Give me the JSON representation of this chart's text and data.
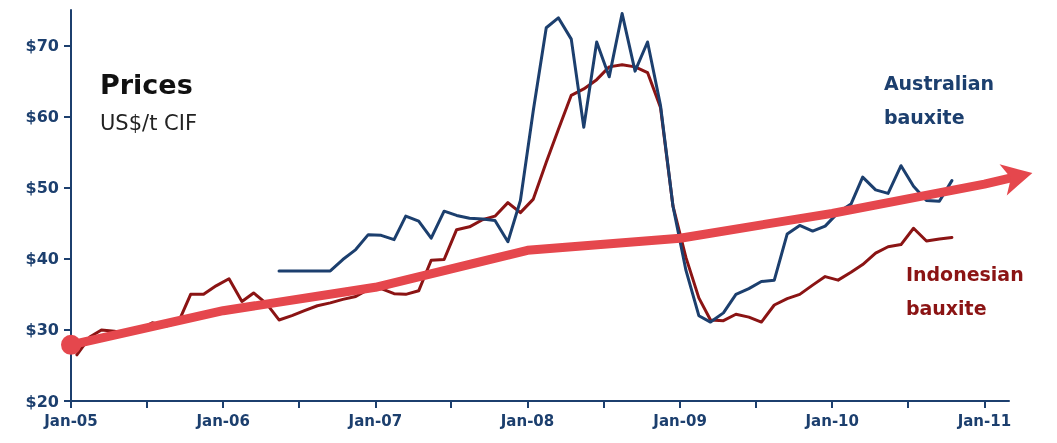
{
  "chart_data": {
    "type": "line",
    "title": "Prices",
    "subtitle": "US$/t CIF",
    "xlim": [
      "2005-01",
      "2011-03"
    ],
    "xticks": [
      {
        "value": "2005-01",
        "label": "Jan-05"
      },
      {
        "value": "2005-07",
        "label": null
      },
      {
        "value": "2006-01",
        "label": "Jan-06"
      },
      {
        "value": "2006-07",
        "label": null
      },
      {
        "value": "2007-01",
        "label": "Jan-07"
      },
      {
        "value": "2007-07",
        "label": null
      },
      {
        "value": "2008-01",
        "label": "Jan-08"
      },
      {
        "value": "2008-07",
        "label": null
      },
      {
        "value": "2009-01",
        "label": "Jan-09"
      },
      {
        "value": "2009-07",
        "label": null
      },
      {
        "value": "2010-01",
        "label": "Jan-10"
      },
      {
        "value": "2010-07",
        "label": null
      },
      {
        "value": "2011-01",
        "label": "Jan-11"
      }
    ],
    "ylim": [
      20,
      75
    ],
    "yticks": [
      {
        "value": 20,
        "label": "$20"
      },
      {
        "value": 30,
        "label": "$30"
      },
      {
        "value": 40,
        "label": "$40"
      },
      {
        "value": 50,
        "label": "$50"
      },
      {
        "value": 60,
        "label": "$60"
      },
      {
        "value": 70,
        "label": "$70"
      }
    ],
    "grid": false,
    "legend": false,
    "marker": "none",
    "line_style": "solid",
    "series": [
      {
        "name": "Indonesian bauxite",
        "color": "#8b1414",
        "x": [
          "2005-01-15",
          "2005-02-15",
          "2005-03-15",
          "2005-04-15",
          "2005-05-15",
          "2005-06-15",
          "2005-07-15",
          "2005-08-15",
          "2005-09-15",
          "2005-10-15",
          "2005-11-15",
          "2005-12-15",
          "2006-01-15",
          "2006-02-15",
          "2006-03-15",
          "2006-04-15",
          "2006-05-15",
          "2006-06-15",
          "2006-07-15",
          "2006-08-15",
          "2006-09-15",
          "2006-10-15",
          "2006-11-15",
          "2006-12-15",
          "2007-01-15",
          "2007-02-15",
          "2007-03-15",
          "2007-04-15",
          "2007-05-15",
          "2007-06-15",
          "2007-07-15",
          "2007-08-15",
          "2007-09-15",
          "2007-10-15",
          "2007-11-15",
          "2007-12-15",
          "2008-01-15",
          "2008-02-15",
          "2008-03-15",
          "2008-04-15",
          "2008-05-15",
          "2008-06-15",
          "2008-07-15",
          "2008-08-15",
          "2008-09-15",
          "2008-10-15",
          "2008-11-15",
          "2008-12-15",
          "2009-01-15",
          "2009-02-15",
          "2009-03-15",
          "2009-04-15",
          "2009-05-15",
          "2009-06-15",
          "2009-07-15",
          "2009-08-15",
          "2009-09-15",
          "2009-10-15",
          "2009-11-15",
          "2009-12-15",
          "2010-01-15",
          "2010-02-15",
          "2010-03-15",
          "2010-04-15",
          "2010-05-15",
          "2010-06-15",
          "2010-07-15",
          "2010-08-15",
          "2010-09-15",
          "2010-10-15"
        ],
        "values": [
          26.5,
          29,
          30,
          29.8,
          29.5,
          30,
          31,
          30.5,
          31,
          35,
          35,
          36.2,
          37.2,
          34,
          35.2,
          33.7,
          31.4,
          32,
          32.7,
          33.4,
          33.8,
          34.3,
          34.7,
          35.7,
          35.8,
          35.1,
          35,
          35.5,
          39.8,
          39.9,
          44.1,
          44.5,
          45.5,
          46,
          47.9,
          46.5,
          48.4,
          53.6,
          58.2,
          63,
          63.9,
          65.2,
          67,
          67.3,
          67,
          66.2,
          61.3,
          47.4,
          40.2,
          34.5,
          31.4,
          31.3,
          32.2,
          31.8,
          31.1,
          33.5,
          34.4,
          35,
          36.3,
          37.5,
          37,
          38.1,
          39.2,
          40.8,
          41.7,
          42,
          44.3,
          42.5,
          42.8,
          43
        ]
      },
      {
        "name": "Australian bauxite",
        "color": "#1c3f6e",
        "x": [
          "2006-05-15",
          "2006-06-15",
          "2006-07-15",
          "2006-08-15",
          "2006-09-15",
          "2006-10-15",
          "2006-11-15",
          "2006-12-15",
          "2007-01-15",
          "2007-02-15",
          "2007-03-15",
          "2007-04-15",
          "2007-05-15",
          "2007-06-15",
          "2007-07-15",
          "2007-08-15",
          "2007-09-15",
          "2007-10-15",
          "2007-11-15",
          "2007-12-15",
          "2008-01-15",
          "2008-02-15",
          "2008-03-15",
          "2008-04-15",
          "2008-05-15",
          "2008-06-15",
          "2008-07-15",
          "2008-08-15",
          "2008-09-15",
          "2008-10-15",
          "2008-11-15",
          "2008-12-15",
          "2009-01-15",
          "2009-02-15",
          "2009-03-15",
          "2009-04-15",
          "2009-05-15",
          "2009-06-15",
          "2009-07-15",
          "2009-08-15",
          "2009-09-15",
          "2009-10-15",
          "2009-11-15",
          "2009-12-15",
          "2010-01-15",
          "2010-02-15",
          "2010-03-15",
          "2010-04-15",
          "2010-05-15",
          "2010-06-15",
          "2010-07-15",
          "2010-08-15",
          "2010-09-15",
          "2010-10-15"
        ],
        "values": [
          38.3,
          38.3,
          38.3,
          38.3,
          38.3,
          39.9,
          41.3,
          43.4,
          43.3,
          42.7,
          46,
          45.3,
          42.9,
          46.7,
          46.1,
          45.7,
          45.6,
          45.4,
          42.4,
          48.2,
          60.9,
          72.5,
          73.9,
          70.9,
          58.5,
          70.5,
          65.6,
          74.5,
          66.4,
          70.5,
          61.6,
          47.4,
          38.4,
          32,
          31.1,
          32.4,
          35,
          35.8,
          36.8,
          37,
          43.5,
          44.7,
          43.9,
          44.6,
          46.5,
          47.7,
          51.5,
          49.7,
          49.2,
          53.1,
          50.2,
          48.2,
          48.1,
          51
        ]
      },
      {
        "type": "line",
        "color": "#e5474d",
        "x": [
          "2005-01",
          "2006-01",
          "2007-01",
          "2008-01",
          "2009-01",
          "2010-01",
          "2011-01",
          "2011-03"
        ],
        "values": [
          27.9,
          32.7,
          36,
          41.2,
          42.9,
          46.4,
          50.5,
          51.3
        ]
      }
    ]
  }
}
